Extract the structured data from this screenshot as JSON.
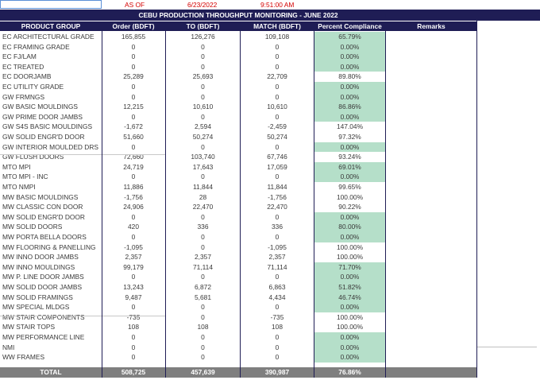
{
  "header_cells": {
    "as_of_label": "AS OF",
    "date": "6/23/2022",
    "time": "9:51:00 AM"
  },
  "report_title": "CEBU PRODUCTION THROUGHPUT MONITORING - JUNE 2022",
  "columns": [
    "PRODUCT GROUP",
    "Order (BDFT)",
    "TO (BDFT)",
    "MATCH (BDFT)",
    "Percent Compliance",
    "Remarks"
  ],
  "rows": [
    {
      "group": "EC ARCHITECTURAL GRADE",
      "order": "165,855",
      "to": "126,276",
      "match": "109,108",
      "pct": "65.79%",
      "low": true
    },
    {
      "group": "EC FRAMING GRADE",
      "order": "0",
      "to": "0",
      "match": "0",
      "pct": "0.00%",
      "low": true
    },
    {
      "group": "EC FJ/LAM",
      "order": "0",
      "to": "0",
      "match": "0",
      "pct": "0.00%",
      "low": true
    },
    {
      "group": "EC TREATED",
      "order": "0",
      "to": "0",
      "match": "0",
      "pct": "0.00%",
      "low": true
    },
    {
      "group": "EC DOORJAMB",
      "order": "25,289",
      "to": "25,693",
      "match": "22,709",
      "pct": "89.80%",
      "low": false
    },
    {
      "group": "EC UTILITY GRADE",
      "order": "0",
      "to": "0",
      "match": "0",
      "pct": "0.00%",
      "low": true
    },
    {
      "group": "GW FRMNGS",
      "order": "0",
      "to": "0",
      "match": "0",
      "pct": "0.00%",
      "low": true
    },
    {
      "group": "GW BASIC MOULDINGS",
      "order": "12,215",
      "to": "10,610",
      "match": "10,610",
      "pct": "86.86%",
      "low": true
    },
    {
      "group": "GW PRIME DOOR JAMBS",
      "order": "0",
      "to": "0",
      "match": "0",
      "pct": "0.00%",
      "low": true
    },
    {
      "group": "GW S4S BASIC MOULDINGS",
      "order": "-1,672",
      "to": "2,594",
      "match": "-2,459",
      "pct": "147.04%",
      "low": false
    },
    {
      "group": "GW SOLID ENGR'D DOOR",
      "order": "51,660",
      "to": "50,274",
      "match": "50,274",
      "pct": "97.32%",
      "low": false
    },
    {
      "group": "GW INTERIOR MOULDED DRS",
      "order": "0",
      "to": "0",
      "match": "0",
      "pct": "0.00%",
      "low": true
    },
    {
      "group": "GW FLUSH DOORS",
      "order": "72,660",
      "to": "103,740",
      "match": "67,746",
      "pct": "93.24%",
      "low": false
    },
    {
      "group": "MTO MPI",
      "order": "24,719",
      "to": "17,643",
      "match": "17,059",
      "pct": "69.01%",
      "low": true
    },
    {
      "group": "MTO MPI - INC",
      "order": "0",
      "to": "0",
      "match": "0",
      "pct": "0.00%",
      "low": true
    },
    {
      "group": "MTO NMPI",
      "order": "11,886",
      "to": "11,844",
      "match": "11,844",
      "pct": "99.65%",
      "low": false
    },
    {
      "group": "MW BASIC MOULDINGS",
      "order": "-1,756",
      "to": "28",
      "match": "-1,756",
      "pct": "100.00%",
      "low": false
    },
    {
      "group": "MW CLASSIC CON DOOR",
      "order": "24,906",
      "to": "22,470",
      "match": "22,470",
      "pct": "90.22%",
      "low": false
    },
    {
      "group": "MW SOLID ENGR'D DOOR",
      "order": "0",
      "to": "0",
      "match": "0",
      "pct": "0.00%",
      "low": true
    },
    {
      "group": "MW SOLID DOORS",
      "order": "420",
      "to": "336",
      "match": "336",
      "pct": "80.00%",
      "low": true
    },
    {
      "group": "MW PORTA BELLA DOORS",
      "order": "0",
      "to": "0",
      "match": "0",
      "pct": "0.00%",
      "low": true
    },
    {
      "group": "MW FLOORING & PANELLING",
      "order": "-1,095",
      "to": "0",
      "match": "-1,095",
      "pct": "100.00%",
      "low": false
    },
    {
      "group": "MW INNO DOOR JAMBS",
      "order": "2,357",
      "to": "2,357",
      "match": "2,357",
      "pct": "100.00%",
      "low": false
    },
    {
      "group": "MW INNO MOULDINGS",
      "order": "99,179",
      "to": "71,114",
      "match": "71,114",
      "pct": "71.70%",
      "low": true
    },
    {
      "group": "MW P. LINE DOOR JAMBS",
      "order": "0",
      "to": "0",
      "match": "0",
      "pct": "0.00%",
      "low": true
    },
    {
      "group": "MW SOLID DOOR JAMBS",
      "order": "13,243",
      "to": "6,872",
      "match": "6,863",
      "pct": "51.82%",
      "low": true
    },
    {
      "group": "MW SOLID FRAMINGS",
      "order": "9,487",
      "to": "5,681",
      "match": "4,434",
      "pct": "46.74%",
      "low": true
    },
    {
      "group": "MW SPECIAL MLDGS",
      "order": "0",
      "to": "0",
      "match": "0",
      "pct": "0.00%",
      "low": true
    },
    {
      "group": "MW STAIR COMPONENTS",
      "order": "-735",
      "to": "0",
      "match": "-735",
      "pct": "100.00%",
      "low": false
    },
    {
      "group": "MW STAIR TOPS",
      "order": "108",
      "to": "108",
      "match": "108",
      "pct": "100.00%",
      "low": false
    },
    {
      "group": "MW PERFORMANCE LINE",
      "order": "0",
      "to": "0",
      "match": "0",
      "pct": "0.00%",
      "low": true
    },
    {
      "group": "NMI",
      "order": "0",
      "to": "0",
      "match": "0",
      "pct": "0.00%",
      "low": true
    },
    {
      "group": "WW FRAMES",
      "order": "0",
      "to": "0",
      "match": "0",
      "pct": "0.00%",
      "low": true
    }
  ],
  "total": {
    "label": "TOTAL",
    "order": "508,725",
    "to": "457,639",
    "match": "390,987",
    "pct": "76.86%"
  },
  "colors": {
    "header_bg": "#1f1d55",
    "low_compliance_bg": "#b5dfc9",
    "total_bg": "#7f7f7f",
    "asof_red": "#d40000"
  }
}
